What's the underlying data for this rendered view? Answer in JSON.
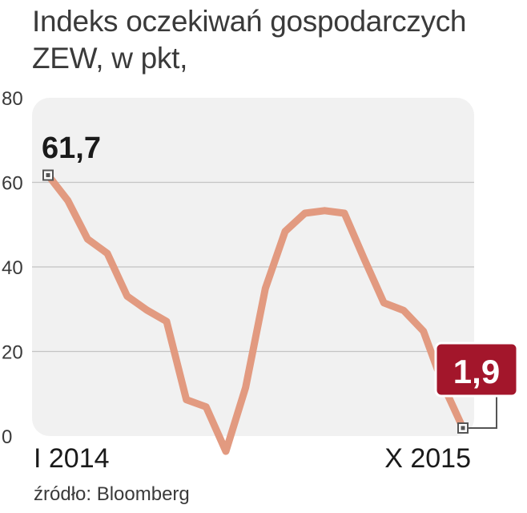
{
  "title": "Indeks oczekiwań gospodarczych ZEW, w pkt,",
  "source": "źródło: Bloomberg",
  "chart_data": {
    "type": "line",
    "title": "Indeks oczekiwań gospodarczych ZEW, w pkt,",
    "xlabel": "",
    "ylabel": "",
    "ylim": [
      0,
      80
    ],
    "yticks": [
      "0",
      "20",
      "40",
      "60",
      "80"
    ],
    "x_labels": [
      "I 2014",
      "X 2015"
    ],
    "series": [
      {
        "values": [
          61.7,
          55.7,
          46.6,
          43.2,
          33.1,
          29.8,
          27.1,
          8.6,
          6.9,
          -3.6,
          11.5,
          34.9,
          48.4,
          52.7,
          53.3,
          52.7,
          41.9,
          31.5,
          29.7,
          24.8,
          12.1,
          1.9
        ]
      }
    ],
    "annotations": [
      {
        "label": "61,7",
        "point": "first"
      },
      {
        "label": "1,9",
        "point": "last"
      }
    ],
    "grid": true,
    "line_color": "#e29a80",
    "highlight_color": "#a3162b",
    "plot_background": "#f1f1f1"
  }
}
